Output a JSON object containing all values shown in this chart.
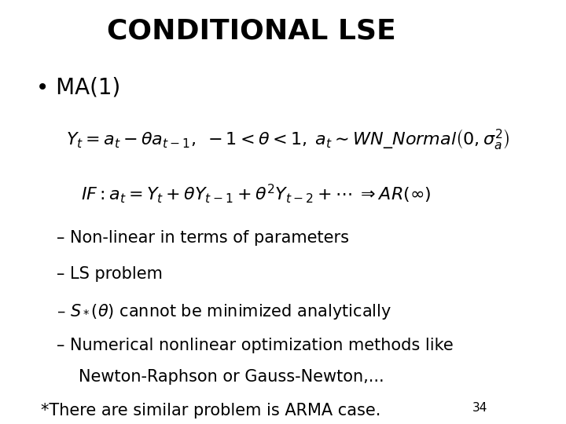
{
  "title": "CONDITIONAL LSE",
  "title_fontsize": 26,
  "title_fontweight": "bold",
  "background_color": "#ffffff",
  "text_color": "#000000",
  "bullet": "• MA(1)",
  "bullet_fontsize": 20,
  "eq1": "$Y_t = a_t - \\theta a_{t-1},\\;-1 < \\theta < 1,\\; a_t \\sim WN\\_Normal\\left(0, \\sigma_a^2\\right)$",
  "eq2": "$IF: a_t = Y_t + \\theta Y_{t-1} + \\theta^2 Y_{t-2} + \\cdots \\;\\Rightarrow AR(\\infty)$",
  "line1": "– Non-linear in terms of parameters",
  "line2": "– LS problem",
  "line3_part1": "– $S_*(\\theta)$ cannot be minimized analytically",
  "line4": "– Numerical nonlinear optimization methods like",
  "line4b": "    Newton-Raphson or Gauss-Newton,...",
  "line5": "*There are similar problem is ARMA case.",
  "page_number": "34",
  "fontsize_body": 15,
  "fontsize_eq": 16,
  "fontsize_page": 11
}
